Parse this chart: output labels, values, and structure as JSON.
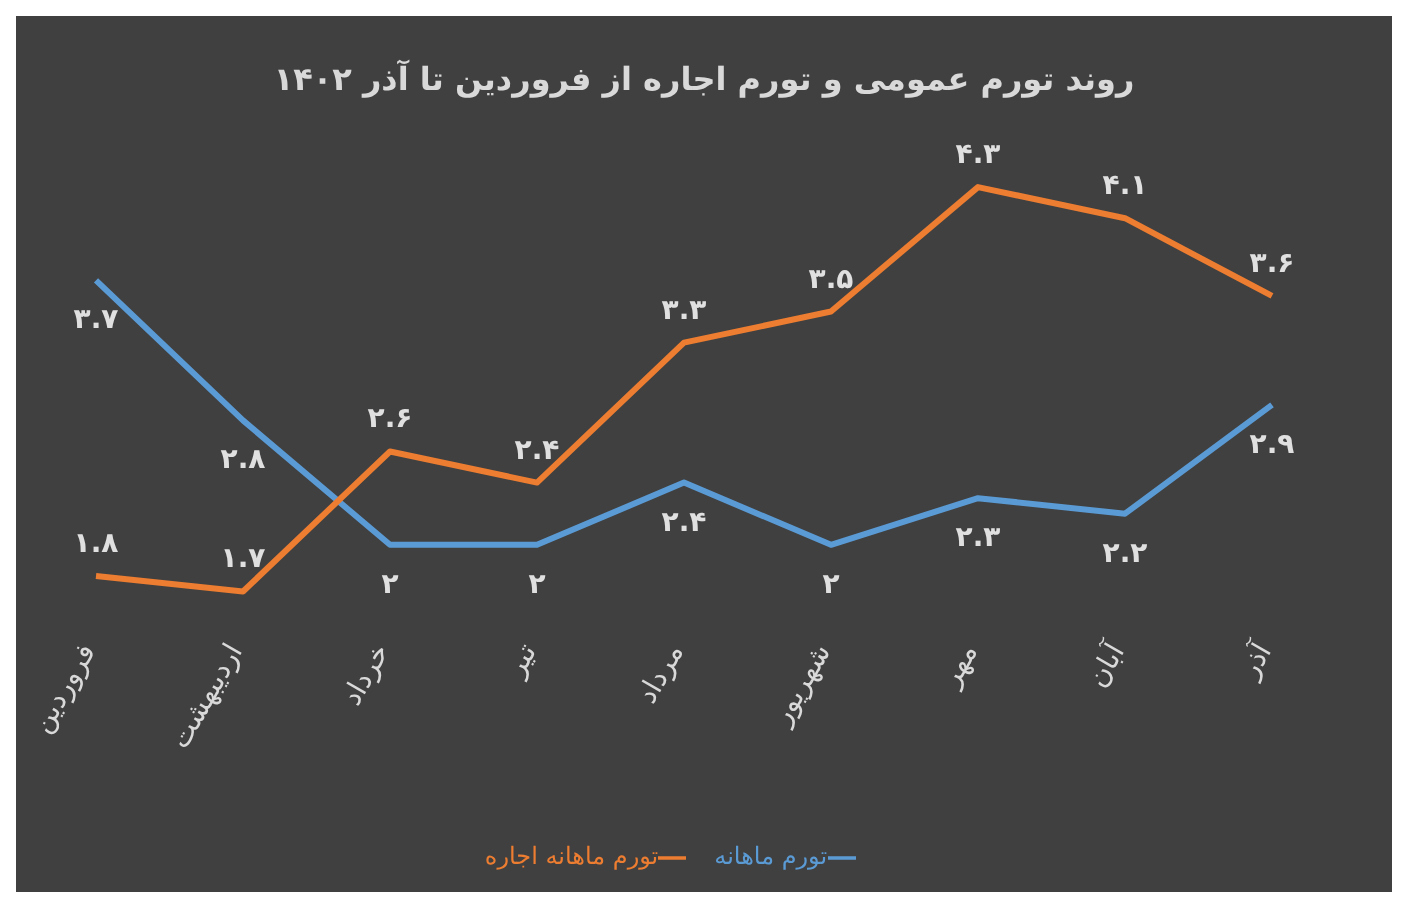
{
  "chart_data": {
    "type": "line",
    "title": "روند تورم عمومی و تورم اجاره از فروردین تا آذر ۱۴۰۲",
    "categories": [
      "فروردین",
      "اردیبهشت",
      "خرداد",
      "تیر",
      "مرداد",
      "شهریور",
      "مهر",
      "آبان",
      "آذر"
    ],
    "series": [
      {
        "name": "تورم ماهانه",
        "color": "#5b9bd5",
        "values": [
          3.7,
          2.8,
          2,
          2,
          2.4,
          2,
          2.3,
          2.2,
          2.9
        ],
        "value_labels": [
          "۳.۷",
          "۲.۸",
          "۲",
          "۲",
          "۲.۴",
          "۲",
          "۲.۳",
          "۲.۲",
          "۲.۹"
        ]
      },
      {
        "name": "تورم ماهانه اجاره",
        "color": "#ed7d31",
        "values": [
          1.8,
          1.7,
          2.6,
          2.4,
          3.3,
          3.5,
          4.3,
          4.1,
          3.6
        ],
        "value_labels": [
          "۱.۸",
          "۱.۷",
          "۲.۶",
          "۲.۴",
          "۳.۳",
          "۳.۵",
          "۴.۳",
          "۴.۱",
          "۳.۶"
        ]
      }
    ],
    "legend": "bottom",
    "grid": false,
    "marker": "none",
    "line_style": "solid",
    "tick_labels": "x"
  }
}
